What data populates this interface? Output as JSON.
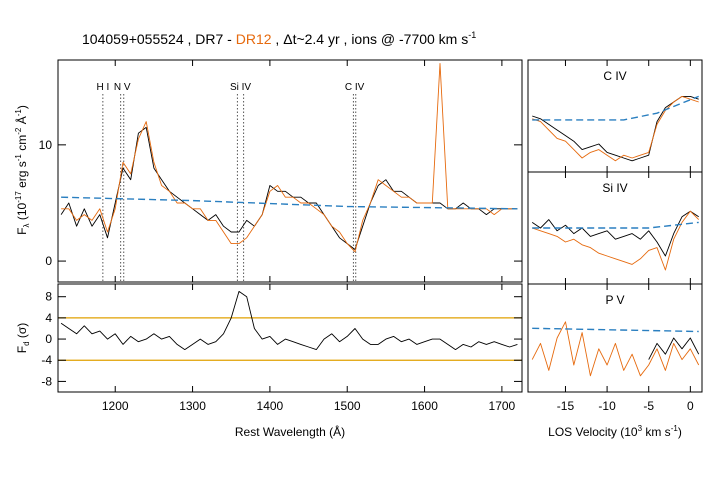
{
  "title": [
    "104059+055524 , ",
    " - ",
    " , Δt~2.4 yr , ions @ -7700 km s",
    "-1"
  ],
  "chart_data": [
    {
      "type": "line",
      "ylabel": [
        "F",
        "λ",
        " (10",
        "-17",
        " erg s",
        "-1",
        " cm",
        "-2",
        " Å",
        "-1",
        ")"
      ],
      "xlim": [
        1126,
        1726
      ],
      "ylim": [
        -1.8,
        17.3
      ],
      "yticks": [
        0,
        10
      ],
      "x": [
        1130,
        1140,
        1150,
        1160,
        1170,
        1180,
        1190,
        1200,
        1210,
        1220,
        1230,
        1240,
        1250,
        1260,
        1270,
        1280,
        1290,
        1300,
        1310,
        1320,
        1330,
        1340,
        1350,
        1360,
        1370,
        1380,
        1390,
        1400,
        1410,
        1420,
        1430,
        1440,
        1450,
        1460,
        1470,
        1480,
        1490,
        1500,
        1510,
        1520,
        1530,
        1540,
        1550,
        1560,
        1570,
        1580,
        1590,
        1600,
        1610,
        1620,
        1630,
        1640,
        1650,
        1660,
        1670,
        1680,
        1690,
        1700,
        1710,
        1720
      ],
      "series": [
        {
          "name": "DR7",
          "color": "#000000",
          "values": [
            4,
            5,
            3,
            4.5,
            3,
            4,
            2,
            5,
            8,
            7,
            11,
            11.5,
            8,
            7,
            6,
            5.5,
            5,
            4.5,
            4,
            3.5,
            4,
            3,
            2.5,
            2.5,
            3.5,
            3,
            4,
            6.5,
            6,
            6,
            5.5,
            5.5,
            5,
            5,
            4,
            3,
            2,
            1.5,
            1,
            3,
            5,
            6.5,
            7,
            6,
            6,
            5.5,
            5,
            5,
            5,
            5,
            4.5,
            4.5,
            5,
            4.5,
            4.5,
            4,
            4.5,
            4.5,
            4.5,
            4.5
          ]
        },
        {
          "name": "DR12",
          "color": "#e66a0e",
          "values": [
            4.5,
            4.5,
            3.5,
            4,
            3.5,
            4.5,
            2.5,
            4.5,
            8.5,
            7.5,
            10.5,
            12,
            8.5,
            6.5,
            6,
            5,
            5,
            4.5,
            4.5,
            3.5,
            3.5,
            2.5,
            1.5,
            1.5,
            2,
            3,
            4,
            6,
            6.5,
            5.5,
            5.5,
            5,
            5,
            4.5,
            4,
            3,
            2.5,
            1.5,
            0.8,
            3.5,
            5,
            7,
            6.5,
            6,
            5.5,
            5.5,
            5,
            5,
            5,
            17,
            4.5,
            4.5,
            4.5,
            4.5,
            4.5,
            4.5,
            4,
            4.5,
            4.5,
            4.5
          ]
        },
        {
          "color": "#2a7fc0",
          "dash": true,
          "x": [
            1130,
            1300,
            1500,
            1720
          ],
          "values": [
            5.5,
            5.2,
            4.7,
            4.5
          ]
        }
      ],
      "markers": [
        {
          "label": "H I",
          "lines": [
            1184
          ]
        },
        {
          "label": "N V",
          "lines": [
            1207,
            1211
          ]
        },
        {
          "label": "Si IV",
          "lines": [
            1358,
            1366
          ]
        },
        {
          "label": "C IV",
          "lines": [
            1508,
            1511
          ]
        }
      ]
    },
    {
      "type": "line",
      "ylabel": [
        "F",
        "d",
        " (σ)"
      ],
      "xlabel": "Rest Wavelength (Å)",
      "xlim": [
        1126,
        1726
      ],
      "xticks": [
        1200,
        1300,
        1400,
        1500,
        1600,
        1700
      ],
      "ylim": [
        -10,
        10.4
      ],
      "yticks": [
        -8,
        -4,
        0,
        4,
        8
      ],
      "thresholds": [
        4,
        -4
      ],
      "threshold_color": "#e0a000",
      "x": [
        1130,
        1140,
        1150,
        1160,
        1170,
        1180,
        1190,
        1200,
        1210,
        1220,
        1230,
        1240,
        1250,
        1260,
        1270,
        1280,
        1290,
        1300,
        1310,
        1320,
        1330,
        1340,
        1350,
        1360,
        1370,
        1380,
        1390,
        1400,
        1410,
        1420,
        1430,
        1440,
        1450,
        1460,
        1470,
        1480,
        1490,
        1500,
        1510,
        1520,
        1530,
        1540,
        1550,
        1560,
        1570,
        1580,
        1590,
        1600,
        1610,
        1620,
        1630,
        1640,
        1650,
        1660,
        1670,
        1680,
        1690,
        1700,
        1710,
        1720
      ],
      "series": [
        {
          "color": "#000000",
          "values": [
            3,
            2,
            1,
            2.5,
            1,
            1.5,
            0,
            1,
            -1,
            0.5,
            -0.5,
            0,
            1,
            0,
            0.5,
            -1,
            -2,
            -1,
            0,
            -1,
            -0.5,
            1,
            4,
            9,
            8,
            2,
            0,
            0.5,
            -1,
            0,
            -0.5,
            -1,
            -1.5,
            -2,
            0,
            1,
            -0.5,
            0.5,
            2,
            0,
            -1,
            -1,
            0,
            0.5,
            -0.5,
            0,
            -1,
            -0.5,
            0,
            0,
            -1,
            -2,
            -1,
            -1.5,
            -0.5,
            -1,
            -0.5,
            -1,
            -1.5,
            -1
          ]
        }
      ]
    },
    {
      "type": "line",
      "label": "C IV",
      "xlim": [
        -19.5,
        1.4
      ],
      "ylim": [
        0,
        2
      ],
      "x": [
        -19,
        -18,
        -17,
        -16,
        -15,
        -14,
        -13,
        -12,
        -11,
        -10,
        -9,
        -8,
        -7,
        -6,
        -5,
        -4,
        -3,
        -2,
        -1,
        0,
        1
      ],
      "series": [
        {
          "color": "#000000",
          "values": [
            1.0,
            0.95,
            0.85,
            0.75,
            0.65,
            0.55,
            0.4,
            0.45,
            0.5,
            0.35,
            0.3,
            0.25,
            0.2,
            0.25,
            0.3,
            0.9,
            1.15,
            1.25,
            1.35,
            1.35,
            1.3
          ]
        },
        {
          "color": "#e66a0e",
          "values": [
            0.95,
            0.9,
            0.75,
            0.6,
            0.55,
            0.4,
            0.25,
            0.35,
            0.4,
            0.3,
            0.2,
            0.3,
            0.25,
            0.3,
            0.35,
            0.85,
            1.1,
            1.25,
            1.35,
            1.3,
            1.25
          ]
        },
        {
          "color": "#2a7fc0",
          "dash": true,
          "x": [
            -19,
            -8,
            -4,
            1
          ],
          "values": [
            0.93,
            0.93,
            1.05,
            1.35
          ]
        }
      ]
    },
    {
      "type": "line",
      "label": "Si IV",
      "xlim": [
        -19.5,
        1.4
      ],
      "ylim": [
        0,
        2
      ],
      "x": [
        -19,
        -18,
        -17,
        -16,
        -15,
        -14,
        -13,
        -12,
        -11,
        -10,
        -9,
        -8,
        -7,
        -6,
        -5,
        -4,
        -3,
        -2,
        -1,
        0,
        1
      ],
      "series": [
        {
          "color": "#000000",
          "values": [
            1.1,
            1.0,
            1.15,
            0.95,
            1.05,
            0.9,
            1.0,
            0.85,
            0.9,
            0.95,
            0.8,
            0.85,
            0.9,
            0.8,
            0.95,
            0.75,
            0.5,
            0.9,
            1.2,
            1.3,
            1.2
          ]
        },
        {
          "color": "#e66a0e",
          "values": [
            1.0,
            0.95,
            0.9,
            0.85,
            0.75,
            0.8,
            0.7,
            0.65,
            0.55,
            0.5,
            0.45,
            0.4,
            0.35,
            0.45,
            0.6,
            0.65,
            0.25,
            0.8,
            1.1,
            1.3,
            1.15
          ]
        },
        {
          "color": "#2a7fc0",
          "dash": true,
          "x": [
            -19,
            -5,
            1
          ],
          "values": [
            1.0,
            1.0,
            1.1
          ]
        }
      ]
    },
    {
      "type": "line",
      "label": "P V",
      "xlabel": [
        "LOS Velocity (10",
        "3",
        " km s",
        "-1",
        ")"
      ],
      "xlim": [
        -19.5,
        1.4
      ],
      "xticks": [
        -15,
        -10,
        -5,
        0
      ],
      "ylim": [
        0,
        2
      ],
      "x": [
        -19,
        -18,
        -17,
        -16,
        -15,
        -14,
        -13,
        -12,
        -11,
        -10,
        -9,
        -8,
        -7,
        -6,
        -5,
        -4,
        -3,
        -2,
        -1,
        0,
        1
      ],
      "series": [
        {
          "color": "#e66a0e",
          "values": [
            0.6,
            0.9,
            0.4,
            1.0,
            1.3,
            0.5,
            1.1,
            0.3,
            0.8,
            0.5,
            0.9,
            0.4,
            0.7,
            0.3,
            0.5,
            0.8,
            0.4,
            0.9,
            0.6,
            0.8,
            0.5
          ]
        },
        {
          "color": "#000000",
          "values": [
            null,
            null,
            null,
            null,
            null,
            null,
            null,
            null,
            null,
            null,
            null,
            null,
            null,
            null,
            0.6,
            0.9,
            0.7,
            1.0,
            0.8,
            1.0,
            0.7
          ]
        },
        {
          "color": "#2a7fc0",
          "dash": true,
          "x": [
            -19,
            1
          ],
          "values": [
            1.18,
            1.12
          ]
        }
      ]
    }
  ]
}
